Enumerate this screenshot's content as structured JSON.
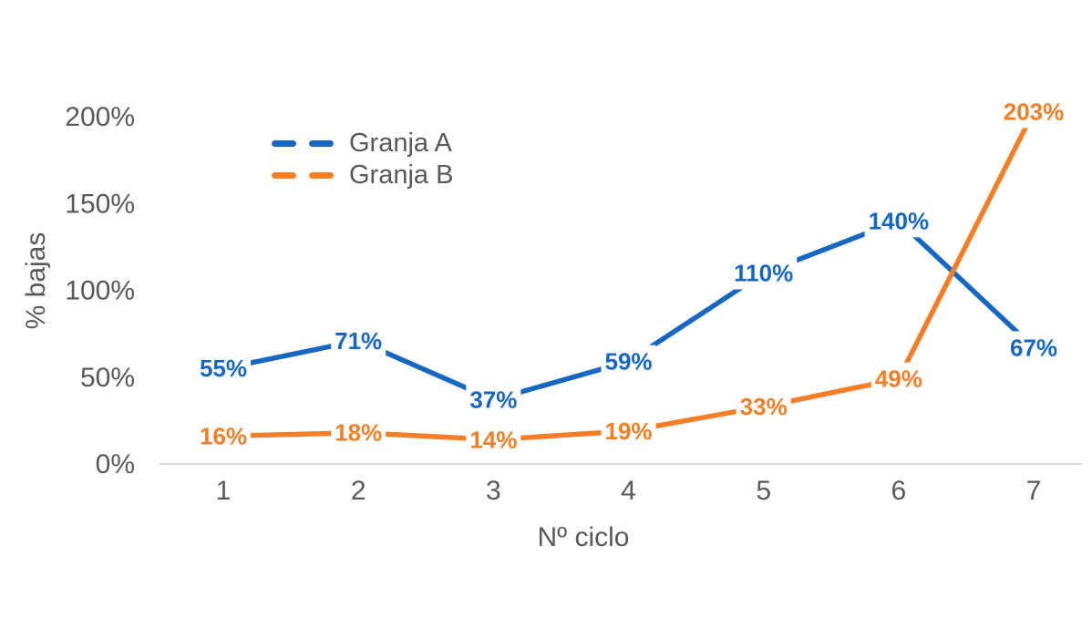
{
  "chart_data": {
    "type": "line",
    "title": "",
    "xlabel": "Nº ciclo",
    "ylabel": "% bajas",
    "x": [
      "1",
      "2",
      "3",
      "4",
      "5",
      "6",
      "7"
    ],
    "series": [
      {
        "name": "Granja A",
        "color": "#1767C2",
        "values": [
          55,
          71,
          37,
          59,
          110,
          140,
          67
        ],
        "labels": [
          "55%",
          "71%",
          "37%",
          "59%",
          "110%",
          "140%",
          "67%"
        ]
      },
      {
        "name": "Granja B",
        "color": "#F47E27",
        "values": [
          16,
          18,
          14,
          19,
          33,
          49,
          203
        ],
        "labels": [
          "16%",
          "18%",
          "14%",
          "19%",
          "33%",
          "49%",
          "203%"
        ]
      }
    ],
    "y_ticks": [
      {
        "value": 0,
        "label": "0%"
      },
      {
        "value": 50,
        "label": "50%"
      },
      {
        "value": 100,
        "label": "100%"
      },
      {
        "value": 150,
        "label": "150%"
      },
      {
        "value": 200,
        "label": "200%"
      }
    ],
    "ylim": [
      0,
      200
    ],
    "grid": false,
    "line_style": "solid",
    "legend_key_style": "dashes",
    "legend_position": "top-left-inside",
    "data_labels_position": "centered-on-point-with-white-halo",
    "colors": {
      "axis_line": "#D9D9D9",
      "text": "#595959",
      "background": "#FFFFFF"
    }
  }
}
